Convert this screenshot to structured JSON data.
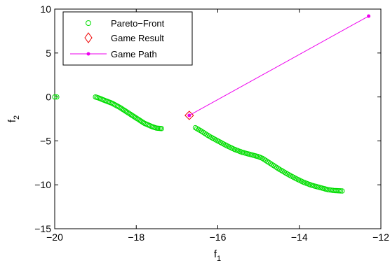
{
  "chart_data": {
    "type": "scatter",
    "title": "",
    "xlabel": "f",
    "xlabel_sub": "1",
    "ylabel": "f",
    "ylabel_sub": "2",
    "xlim": [
      -20,
      -12
    ],
    "ylim": [
      -15,
      10
    ],
    "xticks": [
      -20,
      -18,
      -16,
      -14,
      -12
    ],
    "yticks": [
      -15,
      -10,
      -5,
      0,
      5,
      10
    ],
    "xtick_labels": [
      "−20",
      "−18",
      "−16",
      "−14",
      "−12"
    ],
    "ytick_labels": [
      "−15",
      "−10",
      "−5",
      "0",
      "5",
      "10"
    ],
    "grid": false,
    "legend_position": "top-left",
    "legend": [
      {
        "label": "Pareto−Front",
        "marker": "circle",
        "color": "#00dd00"
      },
      {
        "label": "Game Result",
        "marker": "diamond",
        "color": "#ee0000"
      },
      {
        "label": "Game Path",
        "marker": "line-dot",
        "color": "#ee00ee"
      }
    ],
    "series": [
      {
        "name": "Pareto−Front",
        "kind": "scatter",
        "color": "#00dd00",
        "marker": "circle",
        "segments": [
          {
            "x_start": -20.0,
            "x_end": -19.95,
            "count": 2,
            "y_knots": [
              [
                -20.0,
                0.0
              ],
              [
                -19.95,
                0.0
              ]
            ]
          },
          {
            "x_start": -19.0,
            "x_end": -17.38,
            "count": 52,
            "y_knots": [
              [
                -19.0,
                0.0
              ],
              [
                -18.9,
                -0.15
              ],
              [
                -18.8,
                -0.35
              ],
              [
                -18.6,
                -0.7
              ],
              [
                -18.4,
                -1.2
              ],
              [
                -18.2,
                -1.8
              ],
              [
                -18.0,
                -2.4
              ],
              [
                -17.8,
                -3.0
              ],
              [
                -17.6,
                -3.4
              ],
              [
                -17.5,
                -3.55
              ],
              [
                -17.38,
                -3.6
              ]
            ]
          },
          {
            "x_start": -16.55,
            "x_end": -12.95,
            "count": 95,
            "y_knots": [
              [
                -16.55,
                -3.5
              ],
              [
                -16.4,
                -3.9
              ],
              [
                -16.2,
                -4.5
              ],
              [
                -16.0,
                -5.0
              ],
              [
                -15.8,
                -5.5
              ],
              [
                -15.6,
                -5.95
              ],
              [
                -15.4,
                -6.3
              ],
              [
                -15.2,
                -6.55
              ],
              [
                -15.0,
                -6.8
              ],
              [
                -14.9,
                -7.0
              ],
              [
                -14.7,
                -7.6
              ],
              [
                -14.5,
                -8.2
              ],
              [
                -14.3,
                -8.75
              ],
              [
                -14.1,
                -9.25
              ],
              [
                -13.9,
                -9.7
              ],
              [
                -13.7,
                -10.05
              ],
              [
                -13.5,
                -10.3
              ],
              [
                -13.3,
                -10.55
              ],
              [
                -13.15,
                -10.65
              ],
              [
                -12.95,
                -10.7
              ]
            ]
          }
        ]
      },
      {
        "name": "Game Result",
        "kind": "scatter",
        "color": "#ee0000",
        "marker": "diamond",
        "points": [
          [
            -16.7,
            -2.1
          ]
        ]
      },
      {
        "name": "Game Path",
        "kind": "line",
        "color": "#ee00ee",
        "marker": "dot",
        "points": [
          [
            -16.7,
            -2.1
          ],
          [
            -12.3,
            9.2
          ]
        ]
      }
    ]
  }
}
